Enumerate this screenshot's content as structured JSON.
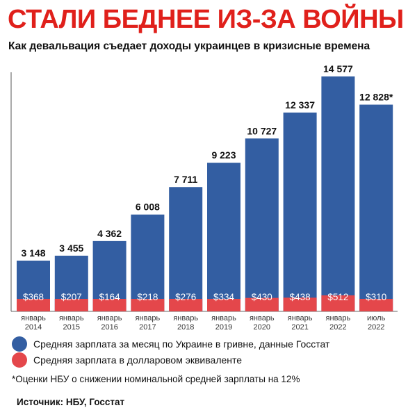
{
  "header": {
    "title": "СТАЛИ БЕДНЕЕ ИЗ-ЗА ВОЙНЫ",
    "subtitle": "Как девальвация съедает доходы украинцев в кризисные времена"
  },
  "chart_data": {
    "type": "bar",
    "categories": [
      [
        "январь",
        "2014"
      ],
      [
        "январь",
        "2015"
      ],
      [
        "январь",
        "2016"
      ],
      [
        "январь",
        "2017"
      ],
      [
        "январь",
        "2018"
      ],
      [
        "январь",
        "2019"
      ],
      [
        "январь",
        "2020"
      ],
      [
        "январь",
        "2021"
      ],
      [
        "январь",
        "2022"
      ],
      [
        "июль",
        "2022"
      ]
    ],
    "series": [
      {
        "name": "Средняя зарплата за месяц по Украине в гривне, данные Госстат",
        "color": "#335ea2",
        "values": [
          3148,
          3455,
          4362,
          6008,
          7711,
          9223,
          10727,
          12337,
          14577,
          12828
        ],
        "labels": [
          "3 148",
          "3 455",
          "4 362",
          "6 008",
          "7 711",
          "9 223",
          "10 727",
          "12 337",
          "14 577",
          "12 828*"
        ]
      },
      {
        "name": "Средняя зарплата в долларовом эквиваленте",
        "color": "#e4474b",
        "values": [
          368,
          207,
          164,
          218,
          276,
          334,
          430,
          438,
          512,
          310
        ],
        "labels": [
          "$368",
          "$207",
          "$164",
          "$218",
          "$276",
          "$334",
          "$430",
          "$438",
          "$512",
          "$310"
        ]
      }
    ]
  },
  "legend": [
    {
      "label": "Средняя зарплата за месяц по Украине в гривне, данные Госстат",
      "color": "#335ea2"
    },
    {
      "label": "Средняя зарплата в долларовом эквиваленте",
      "color": "#e4474b"
    }
  ],
  "note": "*Оценки НБУ о снижении номинальной средней зарплаты на 12%",
  "source": "Источник: НБУ, Госстат"
}
